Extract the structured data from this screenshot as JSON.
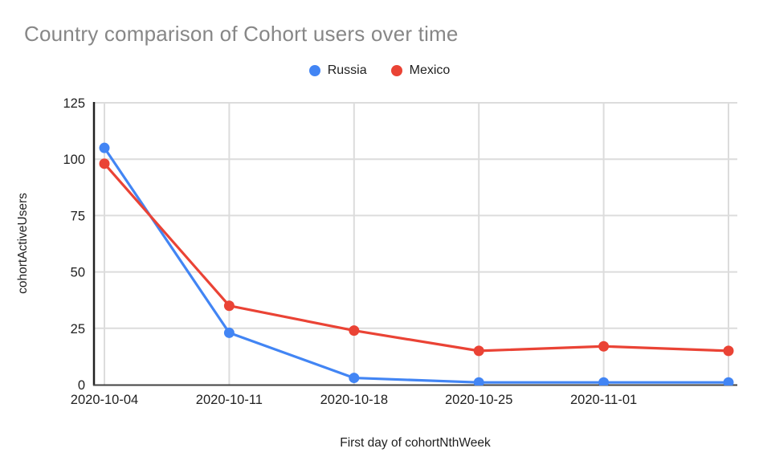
{
  "title": "Country comparison of Cohort users over time",
  "colors": {
    "title_text": "#878787",
    "tick_text": "#212121",
    "grid": "#dcdcdc",
    "axis_left": "#212121",
    "axis_bottom": "#424242",
    "russia": "#4285F4",
    "mexico": "#EA4335"
  },
  "chart_data": {
    "type": "line",
    "title": "Country comparison of Cohort users over time",
    "x_label": "First day of cohortNthWeek",
    "y_label": "cohortActiveUsers",
    "categories": [
      "2020-10-04",
      "2020-10-11",
      "2020-10-18",
      "2020-10-25",
      "2020-11-01",
      ""
    ],
    "series": [
      {
        "name": "Russia",
        "color": "#4285F4",
        "values": [
          105,
          23,
          3,
          1,
          1,
          1
        ]
      },
      {
        "name": "Mexico",
        "color": "#EA4335",
        "values": [
          98,
          35,
          24,
          15,
          17,
          15
        ]
      }
    ],
    "y_ticks": [
      0,
      25,
      50,
      75,
      100,
      125
    ],
    "ylim": [
      0,
      125
    ],
    "grid": true,
    "legend_position": "top",
    "marker": "circle"
  }
}
